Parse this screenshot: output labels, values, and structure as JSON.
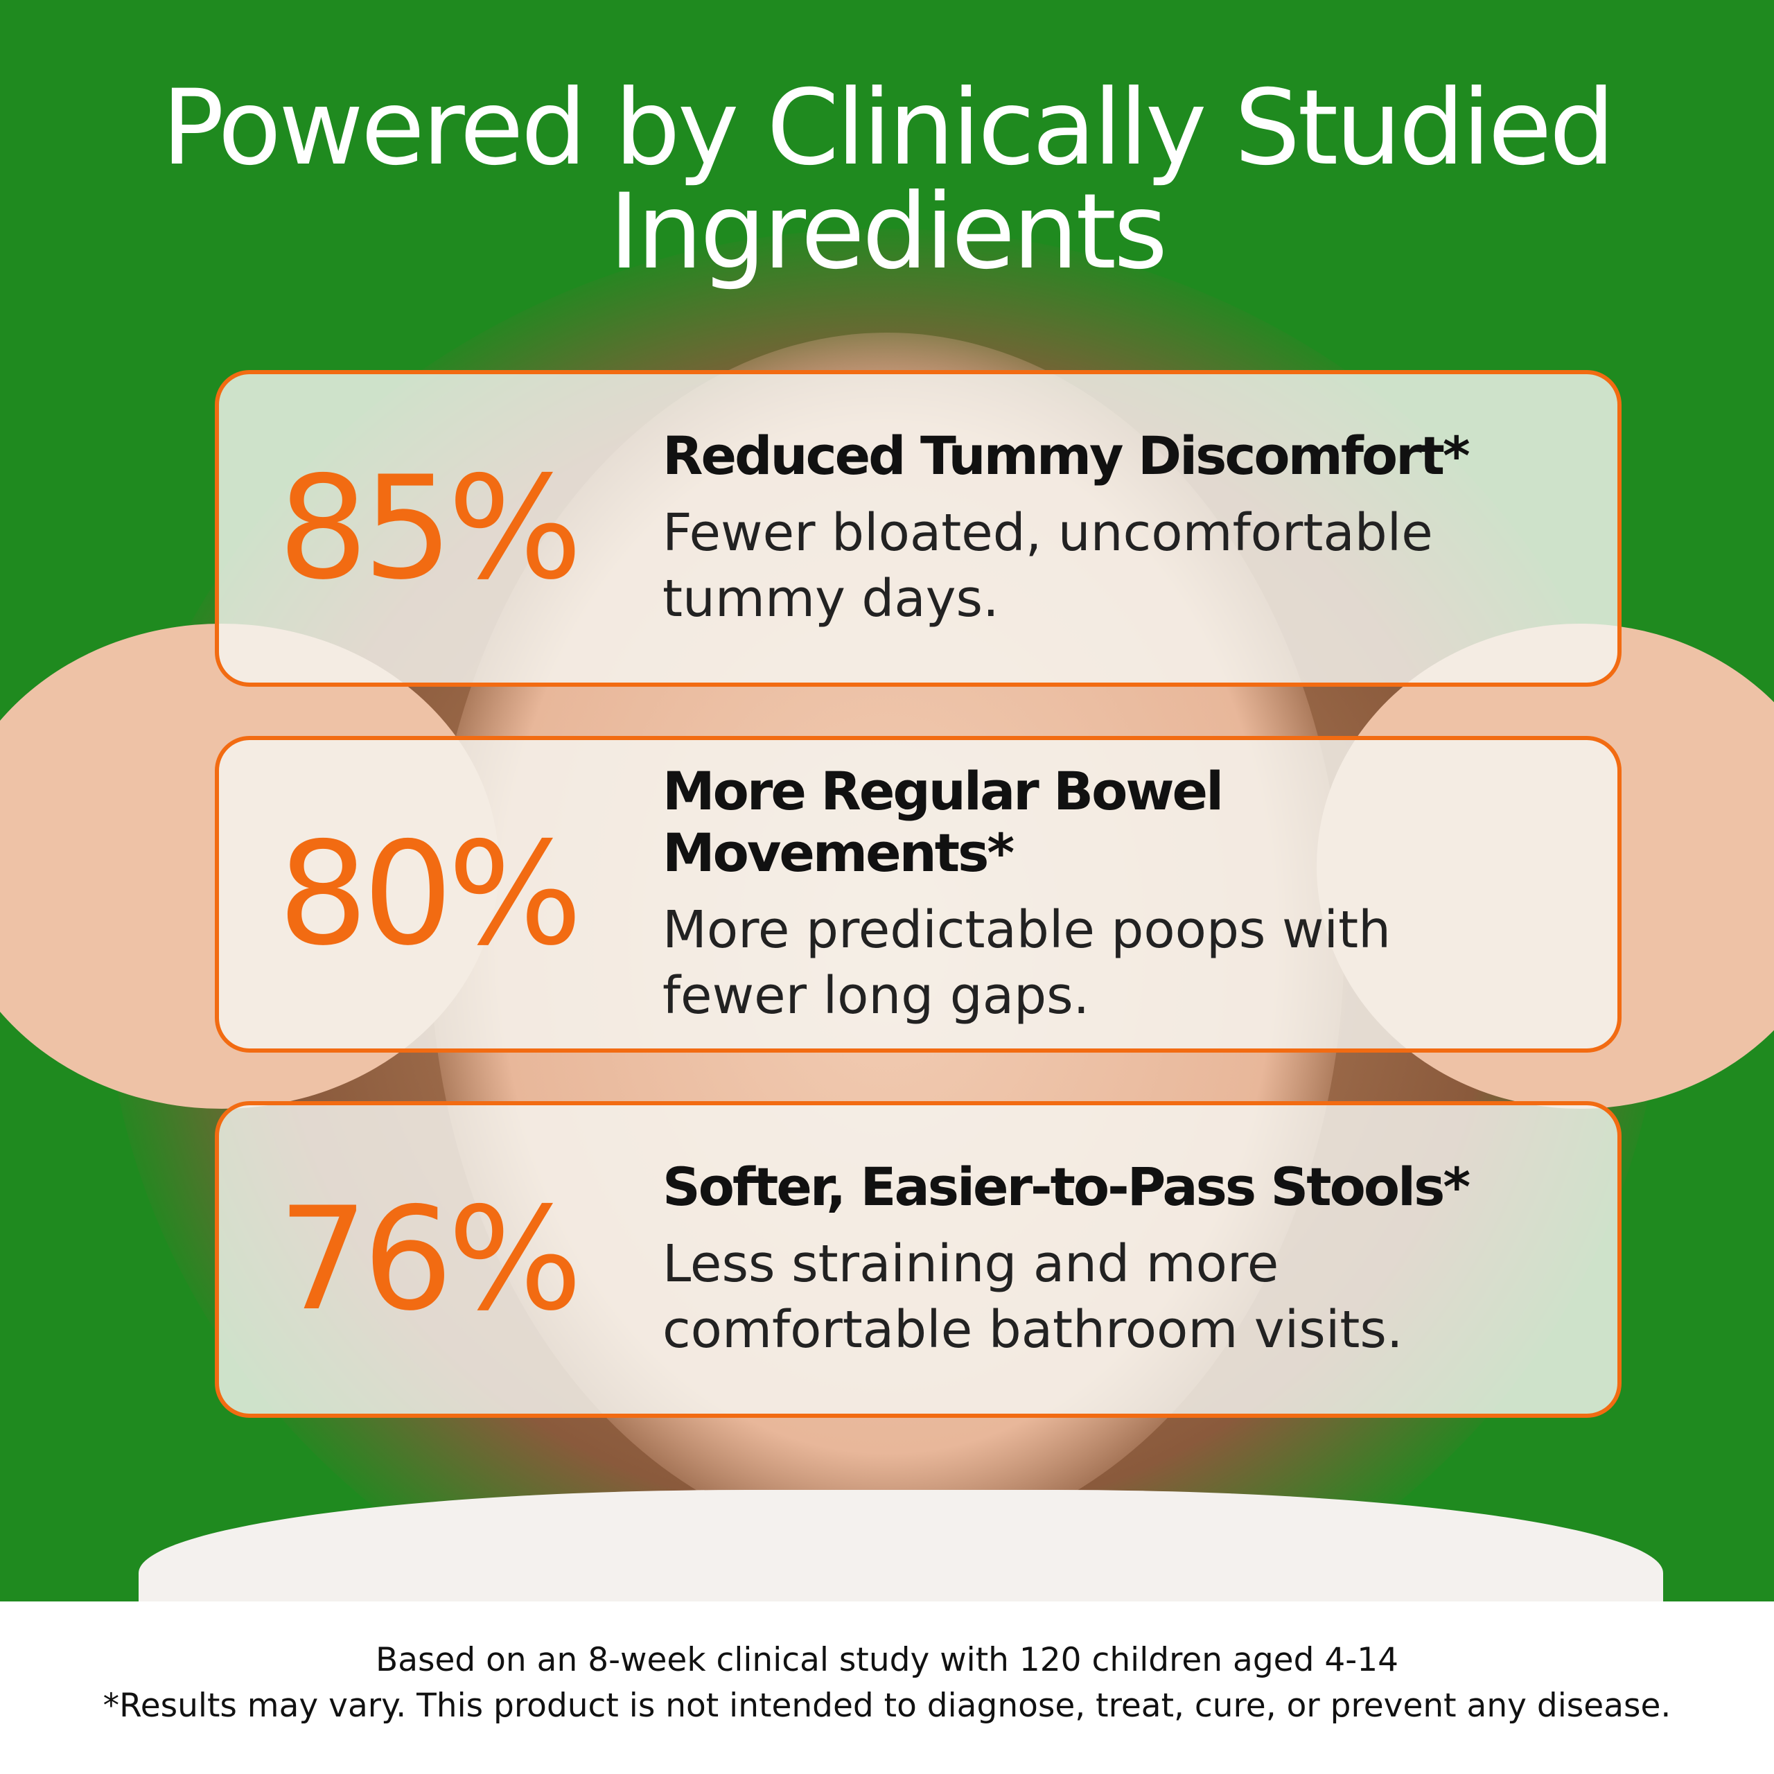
{
  "header": {
    "title": "Powered by Clinically Studied Ingredients"
  },
  "cards": [
    {
      "stat": "85%",
      "heading": "Reduced Tummy Discomfort*",
      "body": "Fewer bloated, uncomfortable tummy days."
    },
    {
      "stat": "80%",
      "heading": "More Regular Bowel Movements*",
      "body": "More predictable poops with fewer long gaps."
    },
    {
      "stat": "76%",
      "heading": "Softer, Easier-to-Pass Stools*",
      "body": "Less straining and more comfortable bathroom visits."
    }
  ],
  "footer": {
    "lines": [
      "Based on an 8-week clinical study with 120 children aged 4-14",
      "*Results may vary. This product is not intended to diagnose, treat, cure, or prevent any disease."
    ]
  }
}
